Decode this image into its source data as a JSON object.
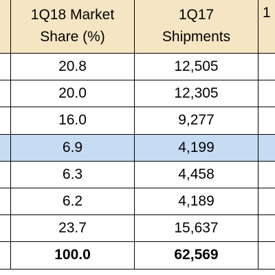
{
  "table": {
    "columns": [
      {
        "lines": [
          "1Q18 Market",
          "Share (%)"
        ]
      },
      {
        "lines": [
          "1Q17",
          "Shipments"
        ]
      },
      {
        "lines": [
          "1"
        ]
      }
    ],
    "rows": [
      [
        "20.8",
        "12,505"
      ],
      [
        "20.0",
        "12,305"
      ],
      [
        "16.0",
        "9,277"
      ],
      [
        "6.9",
        "4,199"
      ],
      [
        "6.3",
        "4,458"
      ],
      [
        "6.2",
        "4,189"
      ],
      [
        "23.7",
        "15,637"
      ],
      [
        "100.0",
        "62,569"
      ]
    ]
  }
}
